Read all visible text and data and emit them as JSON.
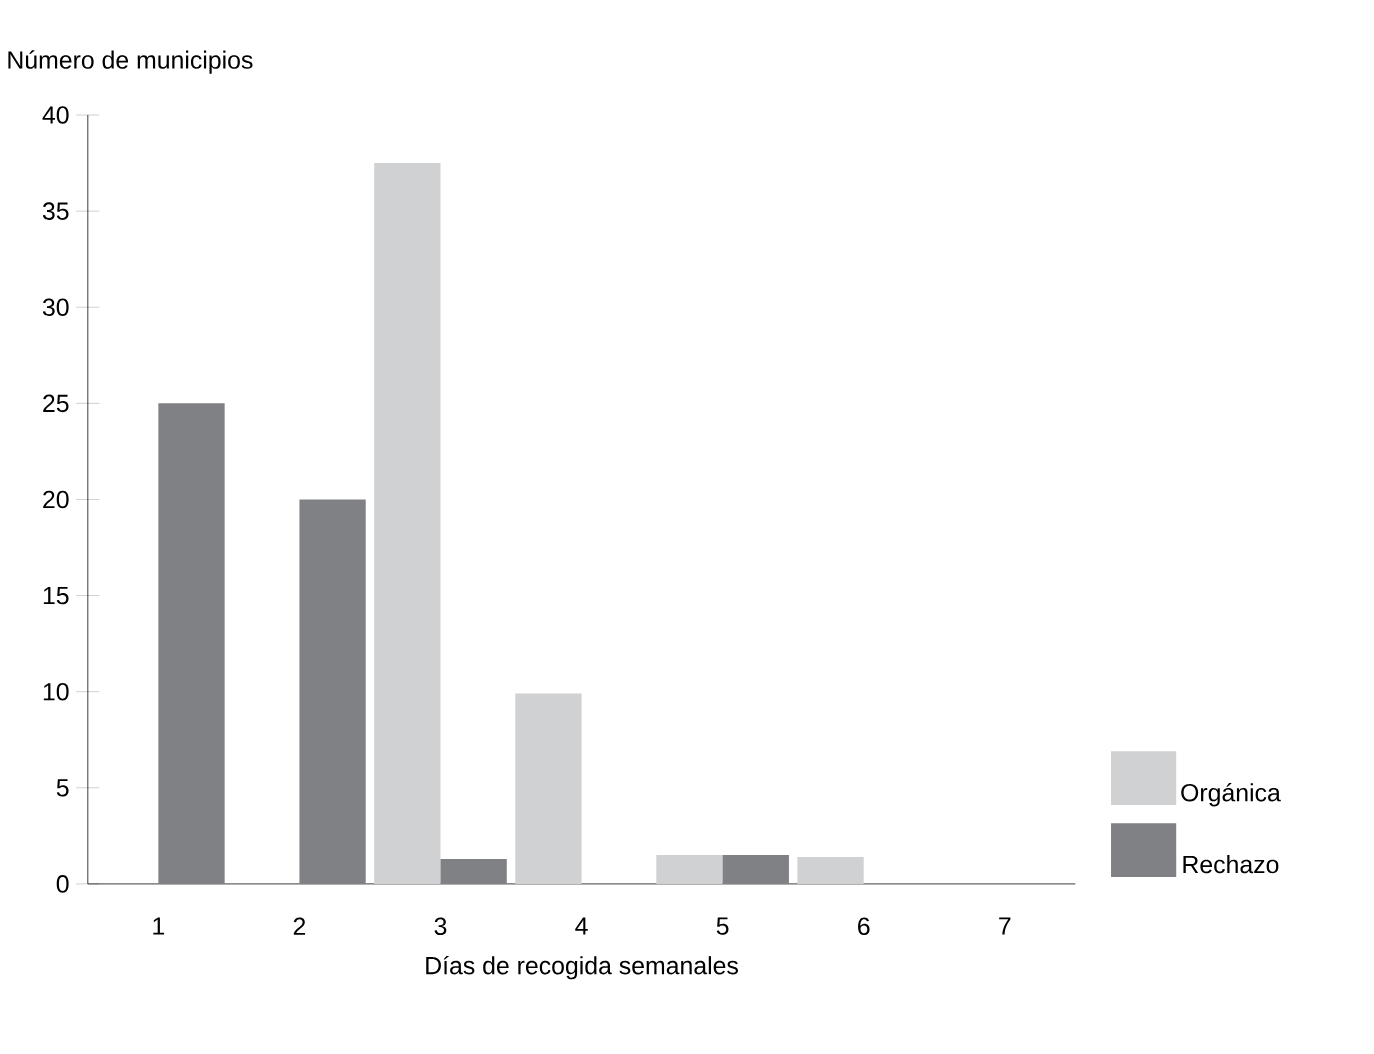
{
  "chart_data": {
    "type": "bar",
    "xlabel": "Días de recogida semanales",
    "ylabel": "Número de municipios",
    "categories": [
      "1",
      "2",
      "3",
      "4",
      "5",
      "6",
      "7"
    ],
    "series": [
      {
        "name": "Orgánica",
        "color": "#d0d1d3",
        "values": [
          0,
          0,
          37.5,
          9.9,
          1.5,
          1.4,
          0
        ]
      },
      {
        "name": "Rechazo",
        "color": "#808184",
        "values": [
          25,
          20,
          1.3,
          0,
          1.5,
          0,
          0
        ]
      }
    ],
    "ylim": [
      0,
      40
    ],
    "yticks": [
      0,
      5,
      10,
      15,
      20,
      25,
      30,
      35,
      40
    ],
    "grid": false,
    "legend": "bottom right"
  }
}
